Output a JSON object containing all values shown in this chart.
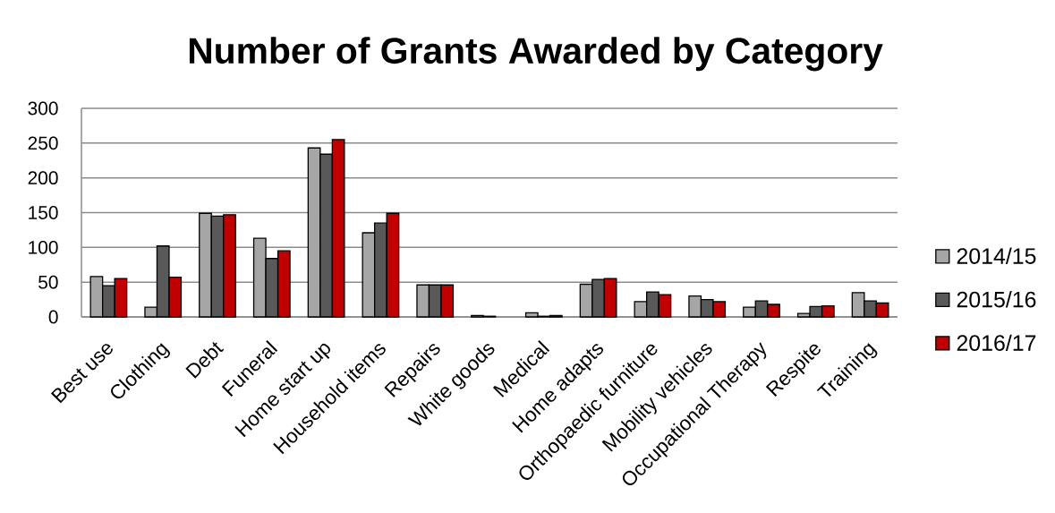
{
  "chart_data": {
    "type": "bar",
    "title": "Number of Grants Awarded by Category",
    "categories": [
      "Best use",
      "Clothing",
      "Debt",
      "Funeral",
      "Home start up",
      "Household items",
      "Repairs",
      "White goods",
      "Medical",
      "Home adapts",
      "Orthopaedic furniture",
      "Mobility vehicles",
      "Occupational Therapy",
      "Respite",
      "Training"
    ],
    "series": [
      {
        "name": "2014/15",
        "color": "#a6a6a6",
        "values": [
          58,
          14,
          149,
          113,
          243,
          121,
          46,
          2,
          6,
          47,
          22,
          30,
          14,
          5,
          35
        ]
      },
      {
        "name": "2015/16",
        "color": "#595959",
        "values": [
          45,
          102,
          145,
          84,
          234,
          135,
          46,
          1,
          1,
          54,
          36,
          25,
          23,
          15,
          23
        ]
      },
      {
        "name": "2016/17",
        "color": "#c00000",
        "values": [
          55,
          57,
          147,
          95,
          255,
          149,
          46,
          null,
          2,
          55,
          32,
          22,
          18,
          16,
          20
        ]
      }
    ],
    "ylim": [
      0,
      300
    ],
    "yticks": [
      0,
      50,
      100,
      150,
      200,
      250,
      300
    ],
    "grid": "y",
    "legend": "right"
  }
}
